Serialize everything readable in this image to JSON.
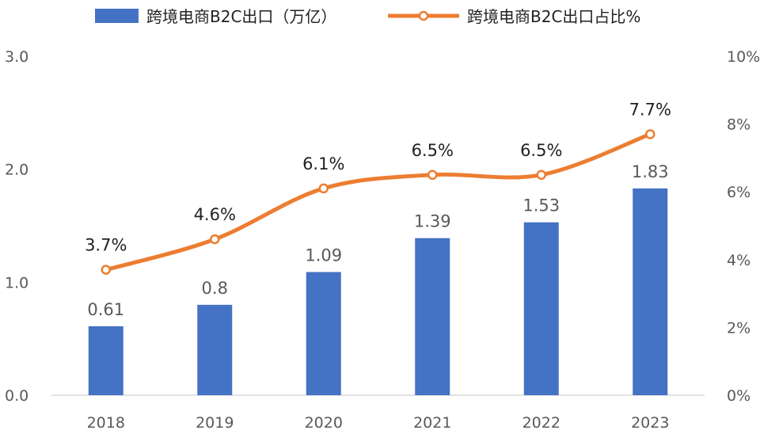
{
  "chart_data": {
    "type": "bar",
    "categories": [
      "2018",
      "2019",
      "2020",
      "2021",
      "2022",
      "2023"
    ],
    "series": [
      {
        "name": "跨境电商B2C出口（万亿）",
        "kind": "bar",
        "axis": "left",
        "values": [
          0.61,
          0.8,
          1.09,
          1.39,
          1.53,
          1.83
        ],
        "labels": [
          "0.61",
          "0.8",
          "1.09",
          "1.39",
          "1.53",
          "1.83"
        ],
        "color": "#4472C4"
      },
      {
        "name": "跨境电商B2C出口占比%",
        "kind": "line",
        "axis": "right",
        "values": [
          3.7,
          4.6,
          6.1,
          6.5,
          6.5,
          7.7
        ],
        "labels": [
          "3.7%",
          "4.6%",
          "6.1%",
          "6.5%",
          "6.5%",
          "7.7%"
        ],
        "color": "#ED7D31"
      }
    ],
    "y_left": {
      "range": [
        0,
        3
      ],
      "ticks": [
        "0.0",
        "1.0",
        "2.0",
        "3.0"
      ],
      "tick_values": [
        0,
        1,
        2,
        3
      ]
    },
    "y_right": {
      "range": [
        0,
        10
      ],
      "ticks": [
        "0%",
        "2%",
        "4%",
        "6%",
        "8%",
        "10%"
      ],
      "tick_values": [
        0,
        2,
        4,
        6,
        8,
        10
      ]
    },
    "legend_position": "top",
    "grid": false
  }
}
